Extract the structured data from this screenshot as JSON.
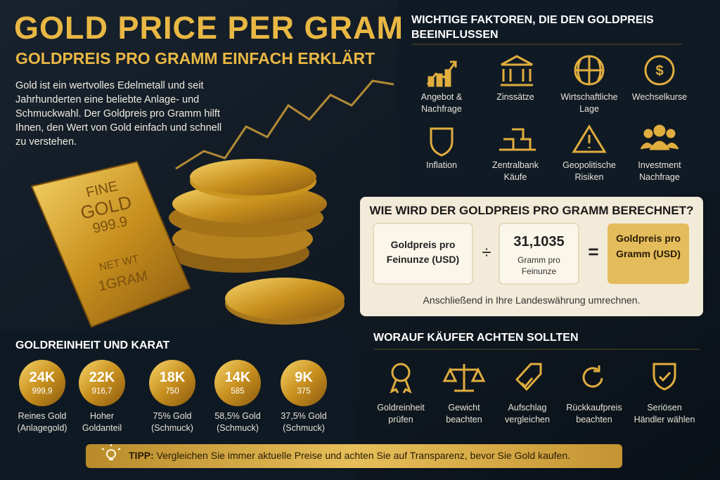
{
  "header": {
    "title": "GOLD PRICE PER GRAM",
    "subtitle": "GOLDPREIS PRO GRAMM EINFACH ERKLÄRT",
    "intro": "Gold ist ein wertvolles Edelmetall und seit Jahrhunderten eine beliebte Anlage- und Schmuckwahl. Der Goldpreis pro Gramm hilft Ihnen, den Wert von Gold einfach und schnell zu verstehen."
  },
  "gold_bar": {
    "line1": "FINE",
    "line2": "GOLD",
    "line3": "999.9",
    "line4": "NET WT",
    "line5": "1GRAM"
  },
  "factors": {
    "title": "WICHTIGE FAKTOREN, DIE DEN GOLDPREIS BEEINFLUSSEN",
    "items": [
      "Angebot & Nachfrage",
      "Zinssätze",
      "Wirtschaftliche Lage",
      "Wechselkurse",
      "Inflation",
      "Zentralbank Käufe",
      "Geopolitische Risiken",
      "Investment Nachfrage"
    ]
  },
  "formula": {
    "title": "WIE WIRD DER GOLDPREIS PRO GRAMM BERECHNET?",
    "numerator": "Goldpreis pro Feinunze (USD)",
    "divide": "÷",
    "divisor_value": "31,1035",
    "divisor_unit": "Gramm pro Feinunze",
    "equals": "=",
    "result": "Goldpreis pro Gramm (USD)",
    "note": "Anschließend in Ihre Landeswährung umrechnen."
  },
  "purity": {
    "title": "GOLDREINHEIT UND KARAT",
    "items": [
      {
        "karat": "24K",
        "fineness": "999,9",
        "label": "Reines Gold (Anlagegold)"
      },
      {
        "karat": "22K",
        "fineness": "916,7",
        "label": "Hoher Goldanteil"
      },
      {
        "karat": "18K",
        "fineness": "750",
        "label": "75% Gold (Schmuck)"
      },
      {
        "karat": "14K",
        "fineness": "585",
        "label": "58,5% Gold (Schmuck)"
      },
      {
        "karat": "9K",
        "fineness": "375",
        "label": "37,5% Gold (Schmuck)"
      }
    ]
  },
  "buyers": {
    "title": "WORAUF KÄUFER ACHTEN SOLLTEN",
    "items": [
      "Goldreinheit prüfen",
      "Gewicht beachten",
      "Aufschlag vergleichen",
      "Rückkaufpreis beachten",
      "Seriösen Händler wählen"
    ]
  },
  "tip": {
    "label": "TIPP:",
    "text": "Vergleichen Sie immer aktuelle Preise und achten Sie auf Transparenz, bevor Sie Gold kaufen."
  }
}
